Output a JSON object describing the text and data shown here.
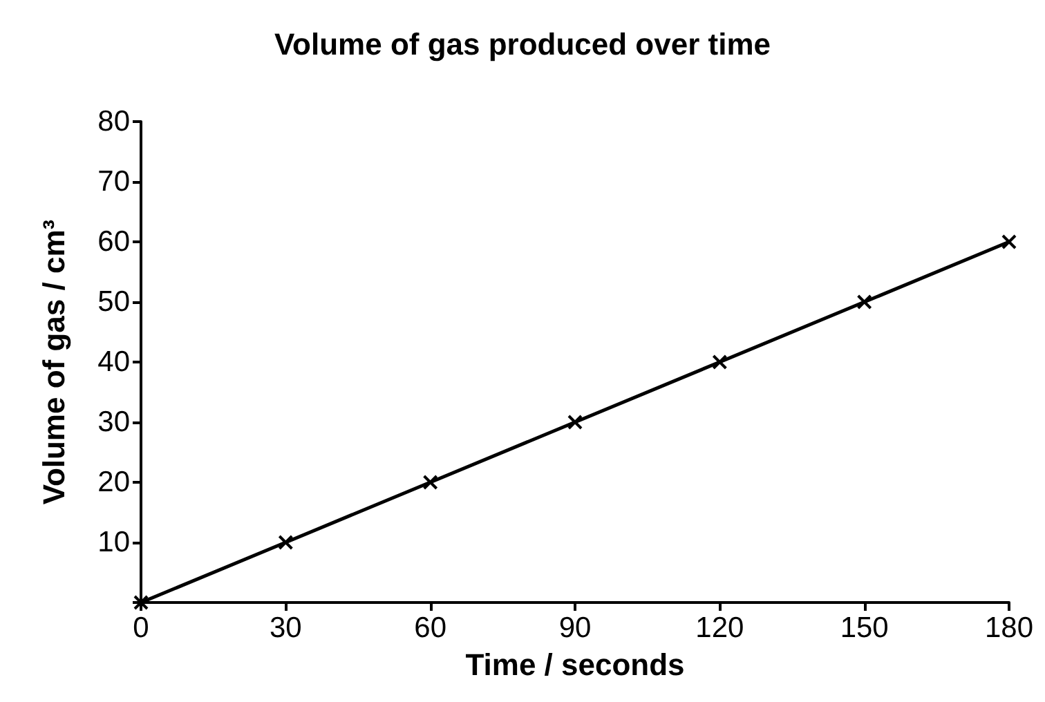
{
  "chart_data": {
    "type": "line",
    "title": "Volume of gas produced over time",
    "xlabel": "Time / seconds",
    "ylabel": "Volume of gas / cm³",
    "x": [
      0,
      30,
      60,
      90,
      120,
      150,
      180
    ],
    "series": [
      {
        "color": "#000000",
        "values": [
          0,
          10,
          20,
          30,
          40,
          50,
          60
        ]
      }
    ],
    "xlim": [
      0,
      180
    ],
    "xticks": [
      0,
      30,
      60,
      90,
      120,
      150,
      180
    ],
    "ylim": [
      0,
      80
    ],
    "yticks": [
      {
        "value": 0,
        "label": null
      },
      10,
      20,
      30,
      40,
      50,
      60,
      70,
      80
    ],
    "marker": "cross",
    "line_style": "solid"
  }
}
